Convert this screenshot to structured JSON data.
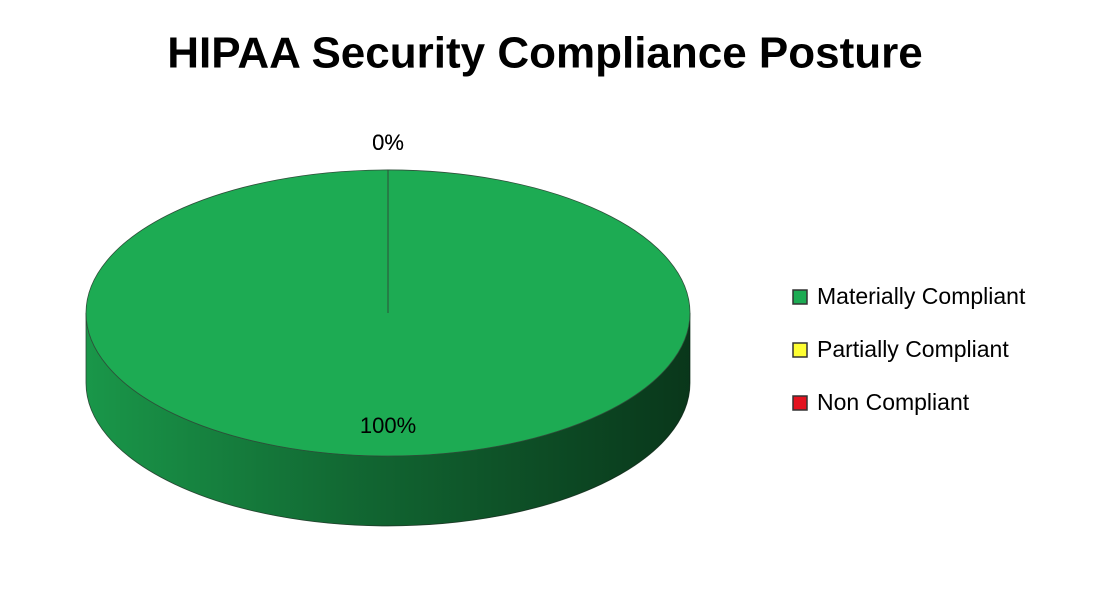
{
  "chart_data": {
    "type": "pie",
    "title": "HIPAA Security Compliance Posture",
    "categories": [
      "Materially Compliant",
      "Partially Compliant",
      "Non Compliant"
    ],
    "values": [
      100,
      0,
      0
    ],
    "value_labels": [
      "100%",
      "0%",
      "0%"
    ],
    "colors": [
      "#1dab53",
      "#ffff33",
      "#e3121f"
    ],
    "legend": "right"
  }
}
